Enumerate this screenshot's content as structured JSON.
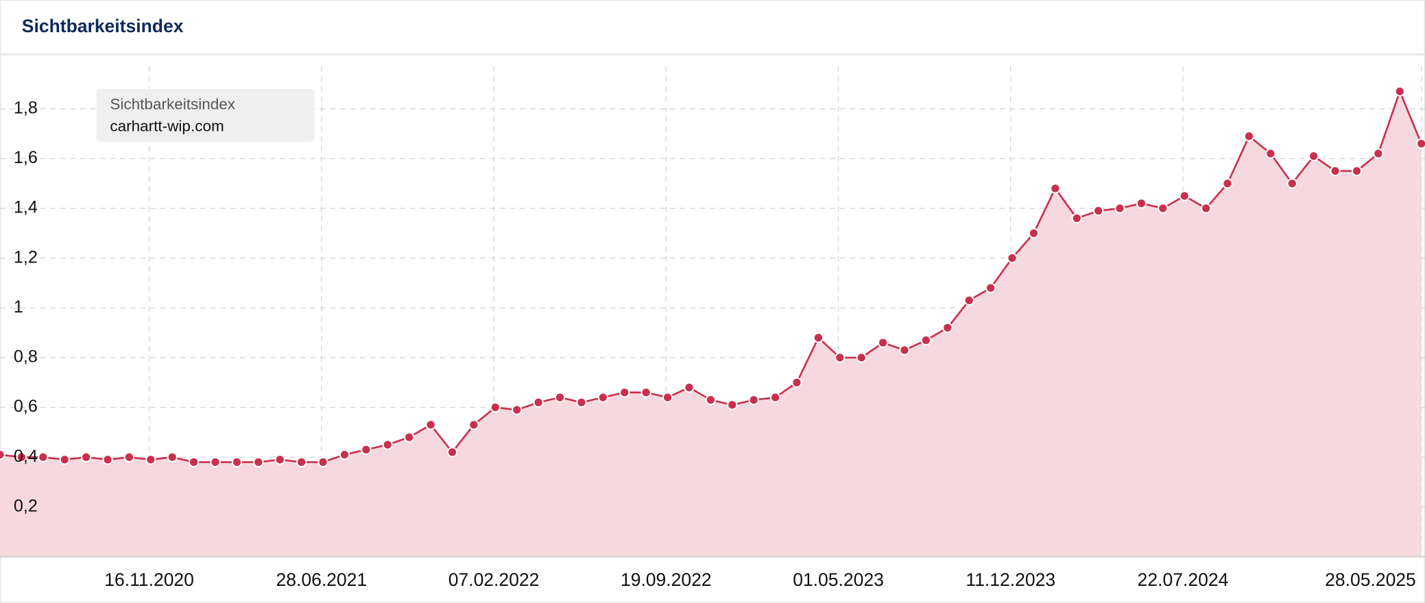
{
  "chart_data": {
    "type": "area",
    "title": "Sichtbarkeitsindex",
    "legend_title": "Sichtbarkeitsindex",
    "x": [
      "06.05.2020",
      "03.06.2020",
      "01.07.2020",
      "29.07.2020",
      "26.08.2020",
      "23.09.2020",
      "21.10.2020",
      "18.11.2020",
      "16.12.2020",
      "13.01.2021",
      "10.02.2021",
      "10.03.2021",
      "07.04.2021",
      "05.05.2021",
      "02.06.2021",
      "30.06.2021",
      "28.07.2021",
      "25.08.2021",
      "22.09.2021",
      "20.10.2021",
      "17.11.2021",
      "15.12.2021",
      "12.01.2022",
      "09.02.2022",
      "09.03.2022",
      "06.04.2022",
      "04.05.2022",
      "01.06.2022",
      "29.06.2022",
      "27.07.2022",
      "24.08.2022",
      "21.09.2022",
      "19.10.2022",
      "16.11.2022",
      "14.12.2022",
      "11.01.2023",
      "08.02.2023",
      "08.03.2023",
      "05.04.2023",
      "03.05.2023",
      "31.05.2023",
      "28.06.2023",
      "26.07.2023",
      "23.08.2023",
      "20.09.2023",
      "18.10.2023",
      "15.11.2023",
      "13.12.2023",
      "10.01.2024",
      "07.02.2024",
      "06.03.2024",
      "03.04.2024",
      "01.05.2024",
      "29.05.2024",
      "26.06.2024",
      "24.07.2024",
      "21.08.2024",
      "18.09.2024",
      "16.10.2024",
      "13.11.2024",
      "11.12.2024",
      "08.01.2025",
      "05.02.2025",
      "05.03.2025",
      "02.04.2025",
      "30.04.2025",
      "28.05.2025"
    ],
    "series": [
      {
        "name": "carhartt-wip.com",
        "color": "#c9304d",
        "fill": "#f5d9de",
        "values": [
          0.41,
          0.4,
          0.4,
          0.39,
          0.4,
          0.39,
          0.4,
          0.39,
          0.4,
          0.38,
          0.38,
          0.38,
          0.38,
          0.39,
          0.38,
          0.38,
          0.41,
          0.43,
          0.45,
          0.48,
          0.53,
          0.42,
          0.53,
          0.6,
          0.59,
          0.62,
          0.64,
          0.62,
          0.64,
          0.66,
          0.66,
          0.64,
          0.68,
          0.63,
          0.61,
          0.63,
          0.64,
          0.7,
          0.88,
          0.8,
          0.8,
          0.86,
          0.83,
          0.87,
          0.92,
          1.03,
          1.08,
          1.2,
          1.3,
          1.48,
          1.36,
          1.39,
          1.4,
          1.42,
          1.4,
          1.45,
          1.4,
          1.5,
          1.69,
          1.62,
          1.5,
          1.61,
          1.55,
          1.55,
          1.62,
          1.87,
          1.66
        ]
      }
    ],
    "xlim": [
      "06.05.2020",
      "28.05.2025"
    ],
    "xticks": [
      "16.11.2020",
      "28.06.2021",
      "07.02.2022",
      "19.09.2022",
      "01.05.2023",
      "11.12.2023",
      "22.07.2024",
      "28.05.2025"
    ],
    "ylim": [
      0,
      2
    ],
    "yticks": [
      {
        "value": 0.2,
        "label": "0,2"
      },
      {
        "value": 0.4,
        "label": "0,4"
      },
      {
        "value": 0.6,
        "label": "0,6"
      },
      {
        "value": 0.8,
        "label": "0,8"
      },
      1,
      {
        "value": 1.2,
        "label": "1,2"
      },
      {
        "value": 1.4,
        "label": "1,4"
      },
      {
        "value": 1.6,
        "label": "1,6"
      },
      {
        "value": 1.8,
        "label": "1,8"
      }
    ],
    "grid": true
  }
}
